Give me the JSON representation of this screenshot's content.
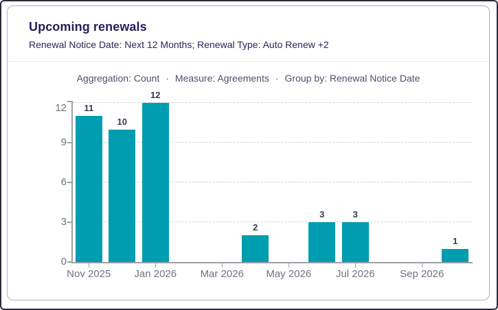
{
  "header": {
    "title": "Upcoming renewals",
    "subtitle": "Renewal Notice Date: Next 12 Months; Renewal Type: Auto Renew +2"
  },
  "meta": {
    "separator": "·",
    "items": [
      "Aggregation: Count",
      "Measure: Agreements",
      "Group by: Renewal Notice Date"
    ]
  },
  "chart_data": {
    "type": "bar",
    "title": "Upcoming renewals",
    "categories": [
      "Nov 2025",
      "Dec 2025",
      "Jan 2026",
      "Feb 2026",
      "Mar 2026",
      "Apr 2026",
      "May 2026",
      "Jun 2026",
      "Jul 2026",
      "Aug 2026",
      "Sep 2026",
      "Oct 2026"
    ],
    "values": [
      11,
      10,
      12,
      0,
      0,
      2,
      0,
      3,
      3,
      0,
      0,
      1
    ],
    "x_tick_labels": [
      "Nov 2025",
      "Jan 2026",
      "Mar 2026",
      "May 2026",
      "Jul 2026",
      "Sep 2026"
    ],
    "x_tick_every": 2,
    "y_ticks": [
      0,
      3,
      6,
      9,
      12
    ],
    "ylim": [
      0,
      12.2
    ],
    "xlabel": "",
    "ylabel": "",
    "grid": "horizontal-dashed",
    "legend": "none",
    "data_labels": true,
    "bar_color": "#009db0"
  },
  "colors": {
    "bar": "#009db0",
    "title_text": "#281d57",
    "subtitle_text": "#2d2355",
    "meta_text": "#544e6a",
    "axis": "#9aa0a6",
    "axis_label": "#6d7480",
    "value_label": "#333b4d",
    "gridline": "#d5d5d8",
    "divider": "#e9e9ec",
    "card_border": "#b3adc2",
    "outer_border": "#2b2a3a"
  }
}
